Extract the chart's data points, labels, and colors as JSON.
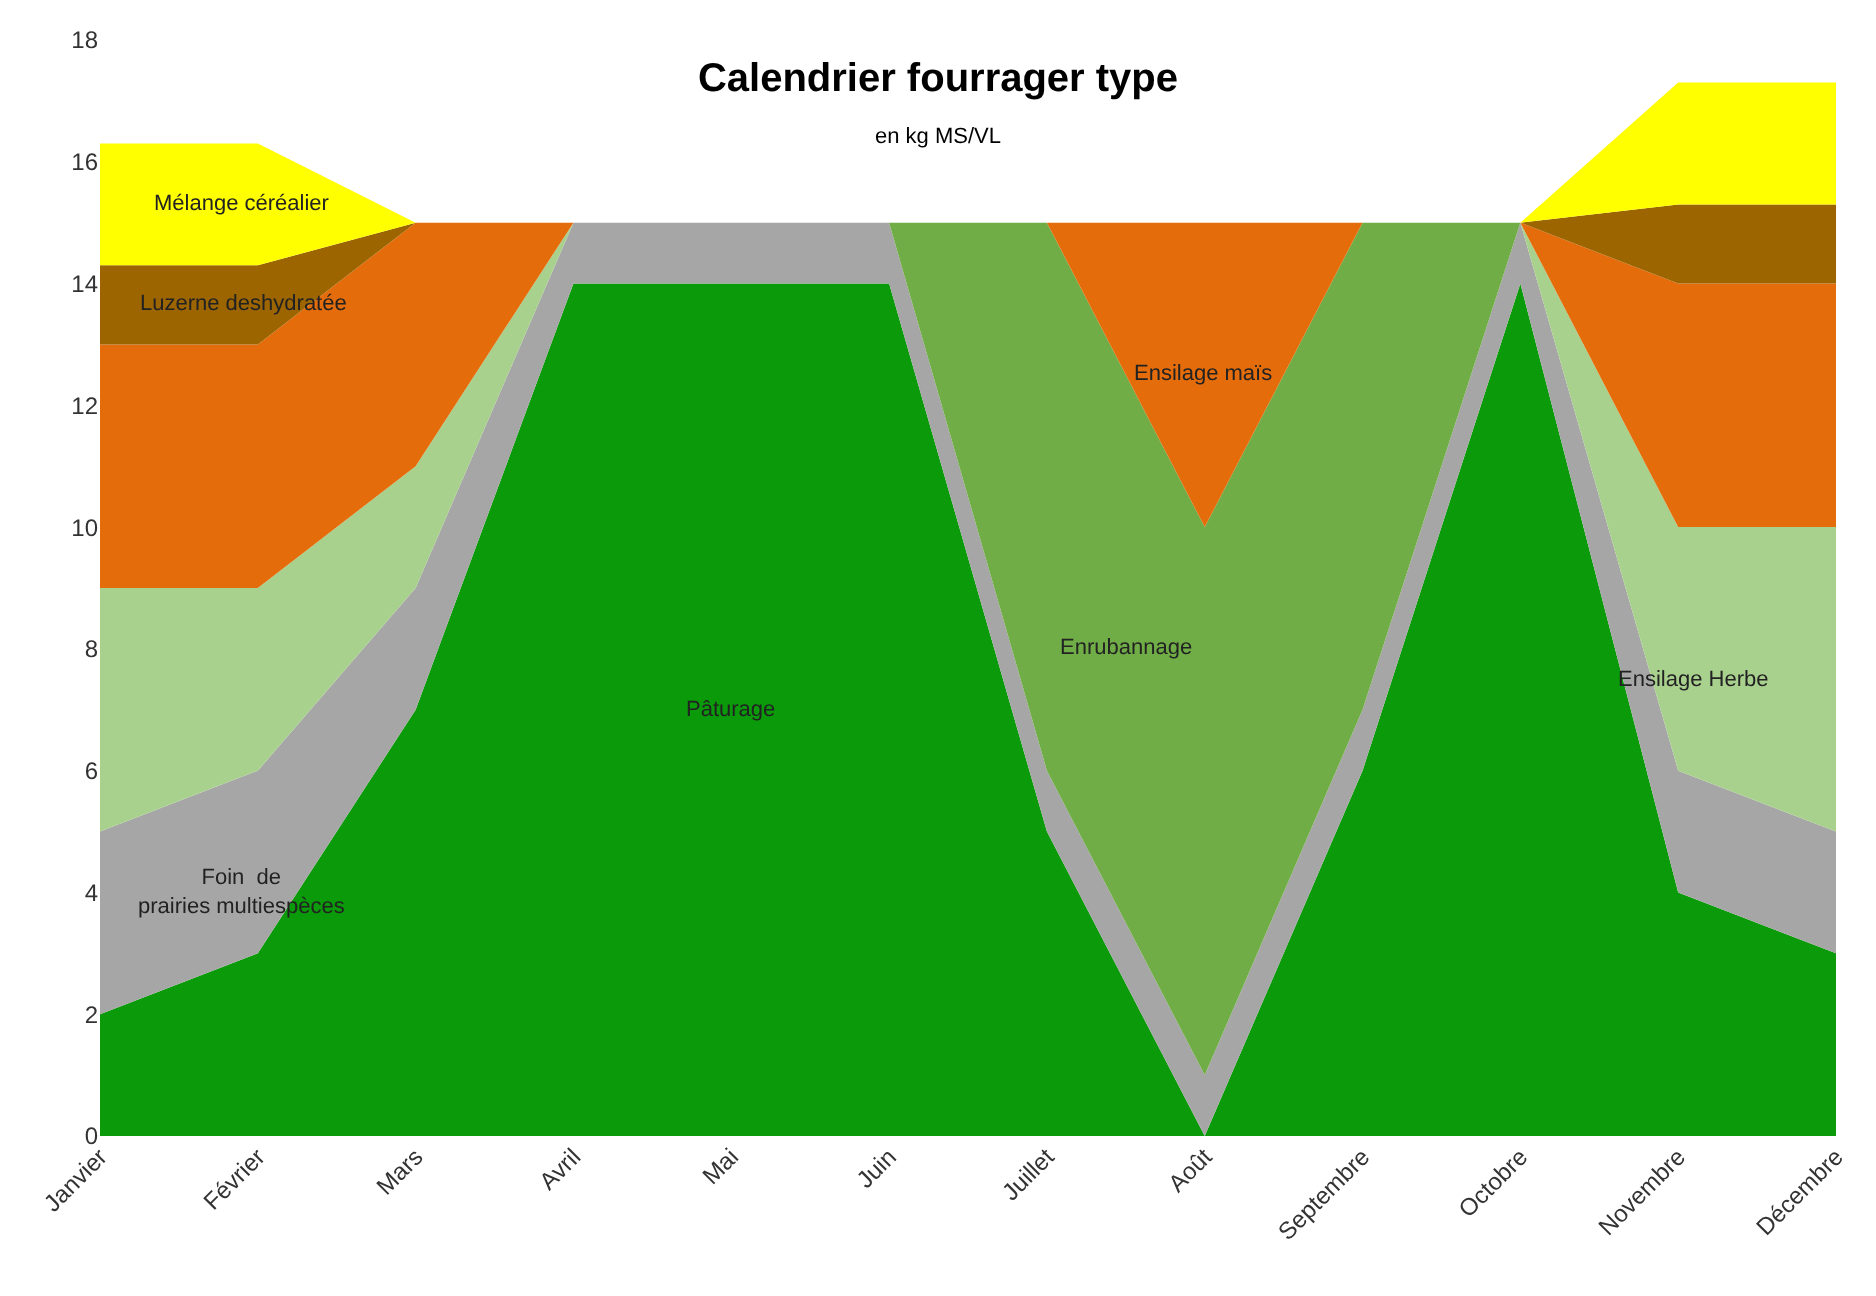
{
  "chart_data": {
    "type": "area",
    "stacked": true,
    "title": "Calendrier fourrager type",
    "subtitle": "en kg MS/VL",
    "categories": [
      "Janvier",
      "Février",
      "Mars",
      "Avril",
      "Mai",
      "Juin",
      "Juillet",
      "Août",
      "Septembre",
      "Octobre",
      "Novembre",
      "Décembre"
    ],
    "ylim": [
      0,
      18
    ],
    "yticks": [
      0,
      2,
      4,
      6,
      8,
      10,
      12,
      14,
      16,
      18
    ],
    "legend": false,
    "series": [
      {
        "name": "Pâturage",
        "color": "#0a9a0a",
        "values": [
          2,
          3,
          7,
          14,
          14,
          14,
          5,
          0,
          6,
          14,
          4,
          3
        ]
      },
      {
        "name": "Foin  de prairies multiespèces",
        "color": "#a6a6a6",
        "values": [
          3,
          3,
          2,
          1,
          1,
          1,
          1,
          1,
          1,
          1,
          2,
          2
        ]
      },
      {
        "name": "Enrubannage",
        "color": "#70ad47",
        "values": [
          0,
          0,
          0,
          0,
          0,
          0,
          9,
          9,
          8,
          0,
          0,
          0
        ]
      },
      {
        "name": "Ensilage Herbe",
        "color": "#a9d18e",
        "values": [
          4,
          3,
          2,
          0,
          0,
          0,
          0,
          0,
          0,
          0,
          4,
          5
        ]
      },
      {
        "name": "Ensilage maïs",
        "color": "#e46c0a",
        "values": [
          4,
          4,
          4,
          0,
          0,
          0,
          0,
          5,
          0,
          0,
          4,
          4
        ]
      },
      {
        "name": "Luzerne deshydratée",
        "color": "#9c6500",
        "values": [
          1.3,
          1.3,
          0,
          0,
          0,
          0,
          0,
          0,
          0,
          0,
          1.3,
          1.3
        ]
      },
      {
        "name": "Mélange céréalier",
        "color": "#ffff00",
        "values": [
          2,
          2,
          0,
          0,
          0,
          0,
          0,
          0,
          0,
          0,
          2,
          2
        ]
      }
    ]
  }
}
